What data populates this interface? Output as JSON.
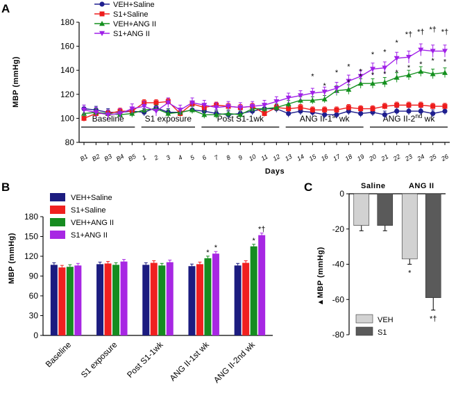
{
  "chart_data": [
    {
      "panel": "A",
      "type": "line",
      "ylabel": "MBP (mmHg)",
      "xlabel": "Days",
      "ylim": [
        80,
        180
      ],
      "yticks": [
        "80",
        "100",
        "120",
        "140",
        "160",
        "180"
      ],
      "x_labels": [
        "B1",
        "B2",
        "B3",
        "B4",
        "B5",
        "1",
        "2",
        "3",
        "4",
        "5",
        "6",
        "7",
        "8",
        "9",
        "10",
        "11",
        "12",
        "13",
        "14",
        "15",
        "16",
        "17",
        "18",
        "19",
        "20",
        "21",
        "22",
        "23",
        "24",
        "25",
        "26"
      ],
      "phases": [
        {
          "label": "Baseline",
          "start": 0,
          "end": 4
        },
        {
          "label": "S1 exposure",
          "start": 5,
          "end": 9
        },
        {
          "label": "Post S1-1wk",
          "start": 10,
          "end": 16
        },
        {
          "label_main": "ANG II-1",
          "label_sup": "st",
          "label_tail": " wk",
          "start": 17,
          "end": 23
        },
        {
          "label_main": "ANG II-2",
          "label_sup": "nd",
          "label_tail": " wk",
          "start": 24,
          "end": 30
        }
      ],
      "series": [
        {
          "name": "VEH+Saline",
          "color": "#1f1f8f",
          "marker": "circle",
          "values": [
            108,
            107,
            105,
            105,
            106,
            105,
            109,
            105,
            105,
            107,
            106,
            104,
            103,
            104,
            106,
            108,
            108,
            104,
            106,
            105,
            103,
            103,
            106,
            104,
            105,
            103,
            106,
            106,
            106,
            104,
            106
          ]
        },
        {
          "name": "S1+Saline",
          "color": "#ee1c1c",
          "marker": "square",
          "values": [
            100,
            104,
            104,
            106,
            106,
            113,
            113,
            114,
            104,
            112,
            109,
            111,
            110,
            109,
            110,
            104,
            109,
            108,
            109,
            107,
            107,
            107,
            109,
            108,
            108,
            110,
            111,
            111,
            111,
            110,
            110
          ]
        },
        {
          "name": "VEH+ANG II",
          "color": "#14901e",
          "marker": "triangle",
          "values": [
            104,
            105,
            104,
            103,
            104,
            107,
            108,
            104,
            105,
            107,
            103,
            103,
            104,
            103,
            108,
            108,
            109,
            112,
            115,
            115,
            116,
            123,
            124,
            129,
            129,
            130,
            134,
            136,
            139,
            137,
            138
          ]
        },
        {
          "name": "S1+ANG II",
          "color": "#a020e8",
          "marker": "triangle-down",
          "values": [
            107,
            105,
            103,
            104,
            108,
            110,
            106,
            113,
            107,
            113,
            111,
            109,
            110,
            109,
            110,
            111,
            114,
            117,
            119,
            121,
            122,
            125,
            131,
            135,
            141,
            142,
            150,
            151,
            157,
            156,
            156
          ]
        }
      ],
      "annotations": [
        {
          "x": 20,
          "y": 125,
          "text": "*"
        },
        {
          "x": 22,
          "y": 128,
          "text": "*"
        },
        {
          "x": 23,
          "y": 133,
          "text": "*"
        },
        {
          "x": 23,
          "y": 137,
          "text": "*"
        },
        {
          "x": 24,
          "y": 134,
          "text": "*"
        },
        {
          "x": 25,
          "y": 135,
          "text": "*"
        },
        {
          "x": 26,
          "y": 136,
          "text": "*"
        },
        {
          "x": 27,
          "y": 140,
          "text": "*"
        },
        {
          "x": 28,
          "y": 143,
          "text": "*"
        },
        {
          "x": 29,
          "y": 146,
          "text": "*"
        },
        {
          "x": 30,
          "y": 145,
          "text": "*"
        },
        {
          "x": 19,
          "y": 133,
          "text": "*"
        },
        {
          "x": 21,
          "y": 136,
          "text": "*"
        },
        {
          "x": 22,
          "y": 141,
          "text": "*"
        },
        {
          "x": 24,
          "y": 151,
          "text": "*"
        },
        {
          "x": 25,
          "y": 153,
          "text": "*"
        },
        {
          "x": 26,
          "y": 161,
          "text": "*"
        },
        {
          "x": 27,
          "y": 168,
          "text": "*†"
        },
        {
          "x": 28,
          "y": 170,
          "text": "*†"
        },
        {
          "x": 29,
          "y": 172,
          "text": "*†"
        },
        {
          "x": 30,
          "y": 170,
          "text": "*†"
        }
      ],
      "legend": [
        "VEH+Saline",
        "S1+Saline",
        "VEH+ANG II",
        "S1+ANG II"
      ]
    },
    {
      "panel": "B",
      "type": "bar",
      "ylabel": "MBP (mmHg)",
      "ylim": [
        0,
        180
      ],
      "yticks": [
        "0",
        "30",
        "60",
        "90",
        "120",
        "150",
        "180"
      ],
      "categories": [
        "Baseline",
        "S1 exposure",
        "Post S1-1wk",
        "ANG II-1st wk",
        "ANG II-2nd wk"
      ],
      "series": [
        {
          "name": "VEH+Saline",
          "color": "#1c1c80",
          "values": [
            107,
            108,
            107,
            105,
            106
          ]
        },
        {
          "name": "S1+Saline",
          "color": "#f02020",
          "values": [
            103,
            109,
            110,
            108,
            110
          ]
        },
        {
          "name": "VEH+ANG II",
          "color": "#168c20",
          "values": [
            104,
            107,
            106,
            117,
            135
          ]
        },
        {
          "name": "S1+ANG II",
          "color": "#a727e3",
          "values": [
            106,
            112,
            111,
            124,
            152
          ]
        }
      ],
      "annotations": [
        {
          "category": 3,
          "series": 2,
          "text": "*"
        },
        {
          "category": 3,
          "series": 3,
          "text": "*"
        },
        {
          "category": 4,
          "series": 2,
          "text": "*"
        },
        {
          "category": 4,
          "series": 3,
          "text": "*†"
        }
      ]
    },
    {
      "panel": "C",
      "type": "bar",
      "ylabel": "▲MBP (mmHg)",
      "ylim": [
        -80,
        0
      ],
      "yticks": [
        "0",
        "-20",
        "-40",
        "-60",
        "-80"
      ],
      "groups": [
        "Saline",
        "ANG II"
      ],
      "series": [
        {
          "name": "VEH",
          "color": "#d2d2d2",
          "values": [
            -18,
            -37
          ]
        },
        {
          "name": "S1",
          "color": "#5a5a5a",
          "values": [
            -18,
            -59
          ]
        }
      ],
      "annotations": [
        {
          "group": 1,
          "series": 0,
          "text": "*"
        },
        {
          "group": 1,
          "series": 1,
          "text": "*†"
        }
      ]
    }
  ],
  "panel_letters": [
    "A",
    "B",
    "C"
  ]
}
